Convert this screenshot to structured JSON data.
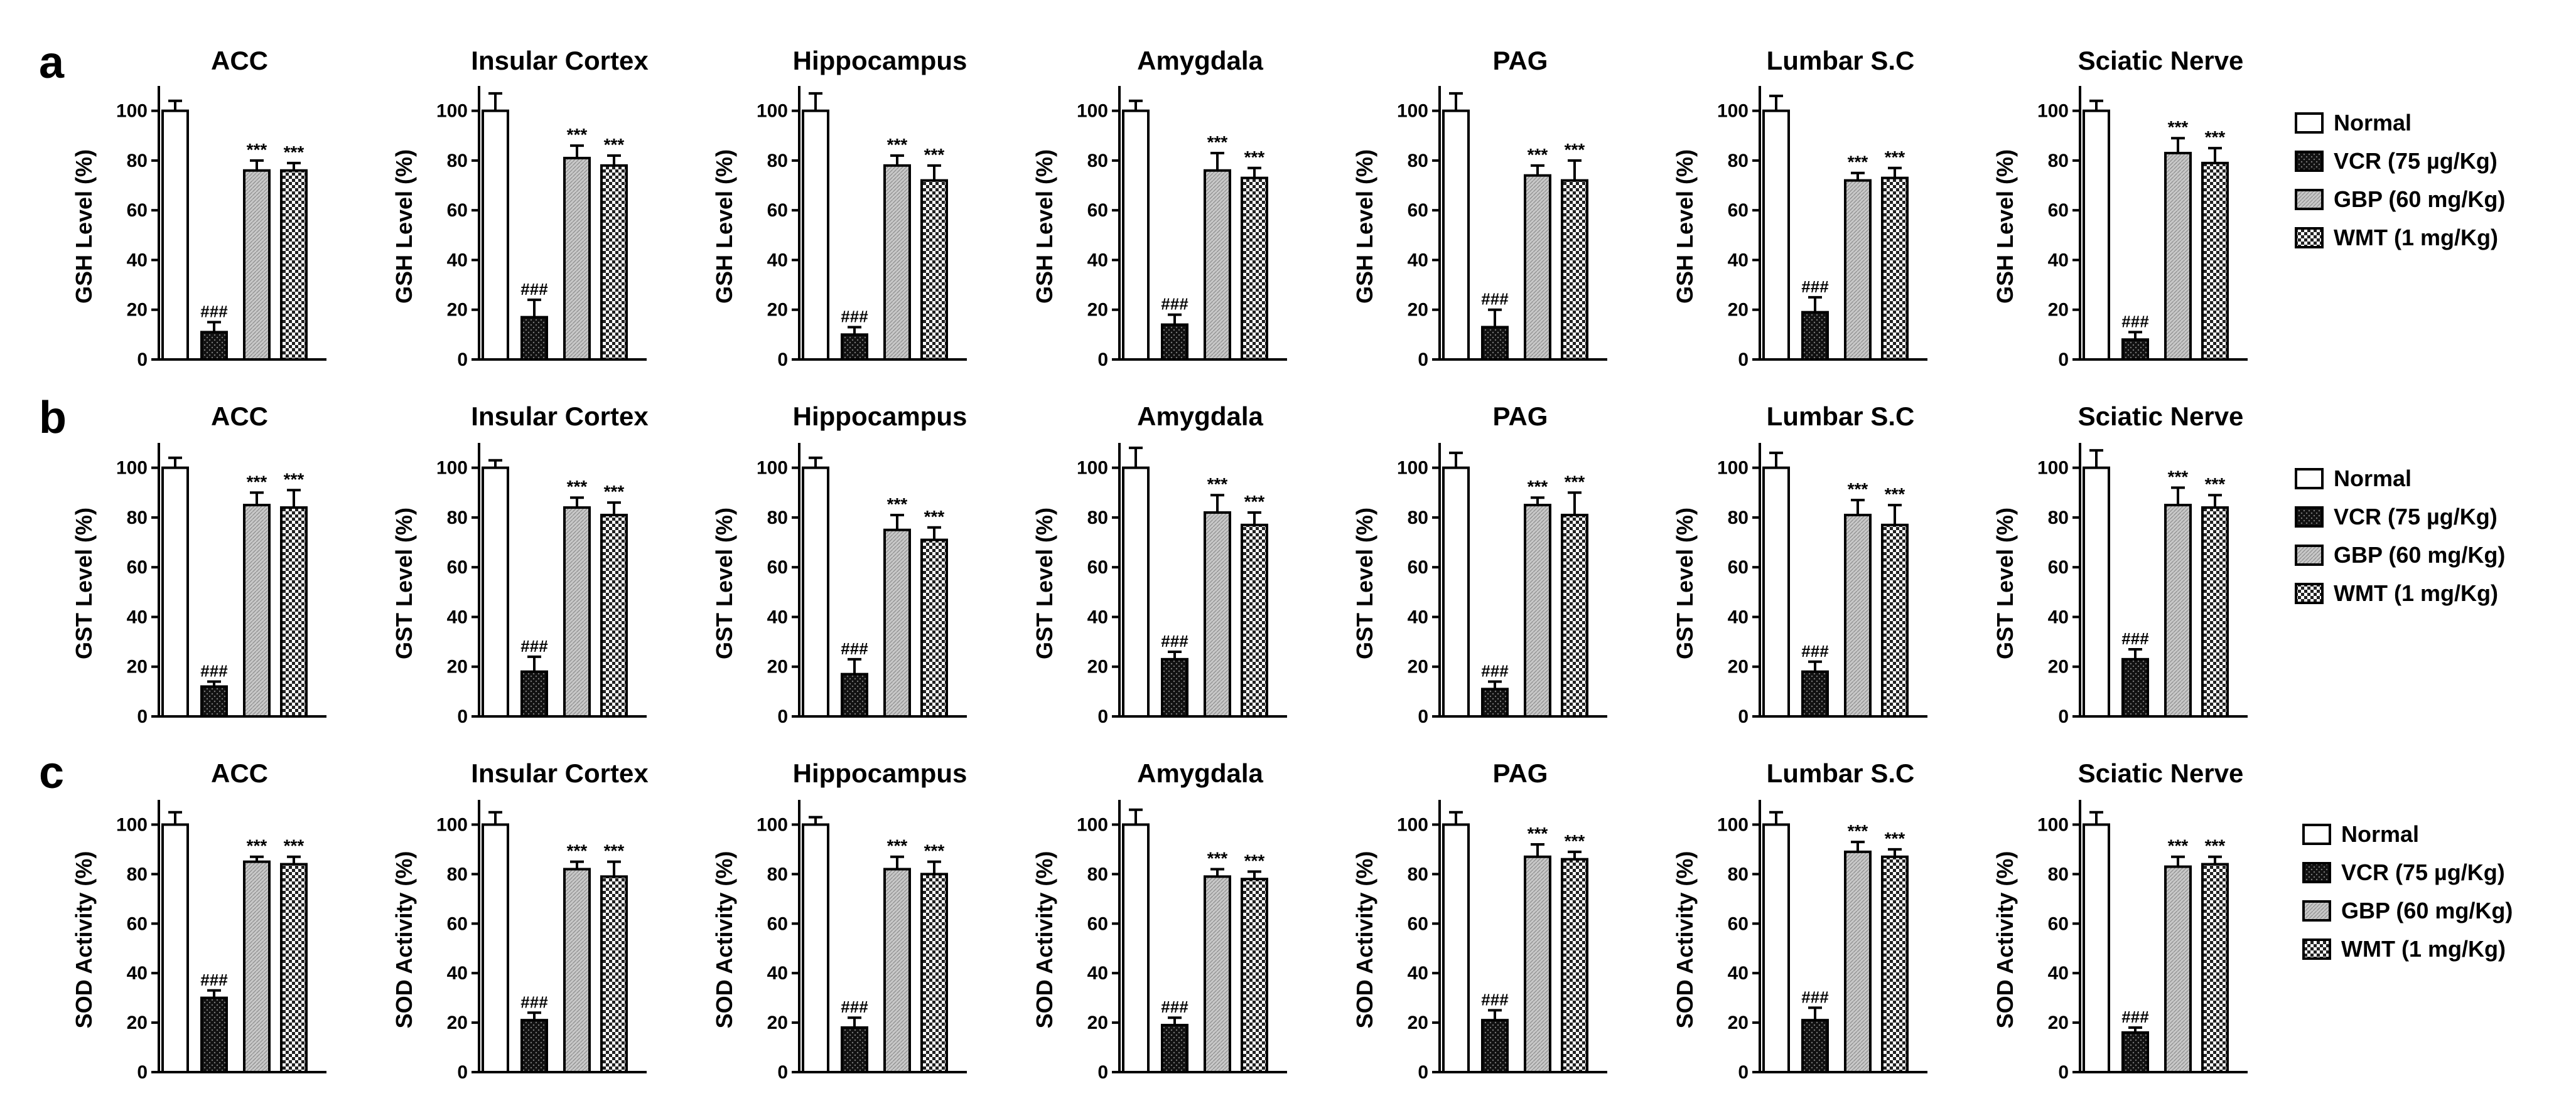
{
  "figure": {
    "panel_letters": [
      "a",
      "b",
      "c"
    ],
    "legend": [
      {
        "label": "Normal",
        "pattern": "white"
      },
      {
        "label": "VCR (75 µg/Kg)",
        "pattern": "dotted"
      },
      {
        "label": "GBP (60 mg/Kg)",
        "pattern": "grey"
      },
      {
        "label": "WMT (1 mg/Kg)",
        "pattern": "checker"
      }
    ],
    "colors": {
      "bar_outline": "#000000",
      "normal_fill": "#ffffff",
      "vcr_fill": "#1a1a1a",
      "gbp_fill": "#bdbdbd",
      "wmt_fill": "#8a8a8a"
    }
  },
  "chart_data": [
    {
      "type": "bar",
      "row": 0,
      "title": "ACC",
      "ylabel": "GSH Level (%)",
      "ylim": [
        0,
        110
      ],
      "yticks": [
        0,
        20,
        40,
        60,
        80,
        100
      ],
      "series": [
        {
          "name": "Normal",
          "value": 100,
          "sem": 4
        },
        {
          "name": "VCR (75 µg/Kg)",
          "value": 11,
          "sem": 4
        },
        {
          "name": "GBP (60 mg/Kg)",
          "value": 76,
          "sem": 4
        },
        {
          "name": "WMT (1 mg/Kg)",
          "value": 76,
          "sem": 3
        }
      ],
      "annotations": [
        "",
        "###",
        "***",
        "***"
      ]
    },
    {
      "type": "bar",
      "row": 0,
      "title": "Insular Cortex",
      "ylabel": "GSH Level (%)",
      "ylim": [
        0,
        110
      ],
      "yticks": [
        0,
        20,
        40,
        60,
        80,
        100
      ],
      "series": [
        {
          "name": "Normal",
          "value": 100,
          "sem": 7
        },
        {
          "name": "VCR (75 µg/Kg)",
          "value": 17,
          "sem": 7
        },
        {
          "name": "GBP (60 mg/Kg)",
          "value": 81,
          "sem": 5
        },
        {
          "name": "WMT (1 mg/Kg)",
          "value": 78,
          "sem": 4
        }
      ],
      "annotations": [
        "",
        "###",
        "***",
        "***"
      ]
    },
    {
      "type": "bar",
      "row": 0,
      "title": "Hippocampus",
      "ylabel": "GSH Level (%)",
      "ylim": [
        0,
        110
      ],
      "yticks": [
        0,
        20,
        40,
        60,
        80,
        100
      ],
      "series": [
        {
          "name": "Normal",
          "value": 100,
          "sem": 7
        },
        {
          "name": "VCR (75 µg/Kg)",
          "value": 10,
          "sem": 3
        },
        {
          "name": "GBP (60 mg/Kg)",
          "value": 78,
          "sem": 4
        },
        {
          "name": "WMT (1 mg/Kg)",
          "value": 72,
          "sem": 6
        }
      ],
      "annotations": [
        "",
        "###",
        "***",
        "***"
      ]
    },
    {
      "type": "bar",
      "row": 0,
      "title": "Amygdala",
      "ylabel": "GSH Level (%)",
      "ylim": [
        0,
        110
      ],
      "yticks": [
        0,
        20,
        40,
        60,
        80,
        100
      ],
      "series": [
        {
          "name": "Normal",
          "value": 100,
          "sem": 4
        },
        {
          "name": "VCR (75 µg/Kg)",
          "value": 14,
          "sem": 4
        },
        {
          "name": "GBP (60 mg/Kg)",
          "value": 76,
          "sem": 7
        },
        {
          "name": "WMT (1 mg/Kg)",
          "value": 73,
          "sem": 4
        }
      ],
      "annotations": [
        "",
        "###",
        "***",
        "***"
      ]
    },
    {
      "type": "bar",
      "row": 0,
      "title": "PAG",
      "ylabel": "GSH Level (%)",
      "ylim": [
        0,
        110
      ],
      "yticks": [
        0,
        20,
        40,
        60,
        80,
        100
      ],
      "series": [
        {
          "name": "Normal",
          "value": 100,
          "sem": 7
        },
        {
          "name": "VCR (75 µg/Kg)",
          "value": 13,
          "sem": 7
        },
        {
          "name": "GBP (60 mg/Kg)",
          "value": 74,
          "sem": 4
        },
        {
          "name": "WMT (1 mg/Kg)",
          "value": 72,
          "sem": 8
        }
      ],
      "annotations": [
        "",
        "###",
        "***",
        "***"
      ]
    },
    {
      "type": "bar",
      "row": 0,
      "title": "Lumbar S.C",
      "ylabel": "GSH Level (%)",
      "ylim": [
        0,
        110
      ],
      "yticks": [
        0,
        20,
        40,
        60,
        80,
        100
      ],
      "series": [
        {
          "name": "Normal",
          "value": 100,
          "sem": 6
        },
        {
          "name": "VCR (75 µg/Kg)",
          "value": 19,
          "sem": 6
        },
        {
          "name": "GBP (60 mg/Kg)",
          "value": 72,
          "sem": 3
        },
        {
          "name": "WMT (1 mg/Kg)",
          "value": 73,
          "sem": 4
        }
      ],
      "annotations": [
        "",
        "###",
        "***",
        "***"
      ]
    },
    {
      "type": "bar",
      "row": 0,
      "title": "Sciatic Nerve",
      "ylabel": "GSH Level (%)",
      "ylim": [
        0,
        110
      ],
      "yticks": [
        0,
        20,
        40,
        60,
        80,
        100
      ],
      "series": [
        {
          "name": "Normal",
          "value": 100,
          "sem": 4
        },
        {
          "name": "VCR (75 µg/Kg)",
          "value": 8,
          "sem": 3
        },
        {
          "name": "GBP (60 mg/Kg)",
          "value": 83,
          "sem": 6
        },
        {
          "name": "WMT (1 mg/Kg)",
          "value": 79,
          "sem": 6
        }
      ],
      "annotations": [
        "",
        "###",
        "***",
        "***"
      ]
    },
    {
      "type": "bar",
      "row": 1,
      "title": "ACC",
      "ylabel": "GST Level (%)",
      "ylim": [
        0,
        110
      ],
      "yticks": [
        0,
        20,
        40,
        60,
        80,
        100
      ],
      "series": [
        {
          "name": "Normal",
          "value": 100,
          "sem": 4
        },
        {
          "name": "VCR (75 µg/Kg)",
          "value": 12,
          "sem": 2
        },
        {
          "name": "GBP (60 mg/Kg)",
          "value": 85,
          "sem": 5
        },
        {
          "name": "WMT (1 mg/Kg)",
          "value": 84,
          "sem": 7
        }
      ],
      "annotations": [
        "",
        "###",
        "***",
        "***"
      ]
    },
    {
      "type": "bar",
      "row": 1,
      "title": "Insular Cortex",
      "ylabel": "GST Level (%)",
      "ylim": [
        0,
        110
      ],
      "yticks": [
        0,
        20,
        40,
        60,
        80,
        100
      ],
      "series": [
        {
          "name": "Normal",
          "value": 100,
          "sem": 3
        },
        {
          "name": "VCR (75 µg/Kg)",
          "value": 18,
          "sem": 6
        },
        {
          "name": "GBP (60 mg/Kg)",
          "value": 84,
          "sem": 4
        },
        {
          "name": "WMT (1 mg/Kg)",
          "value": 81,
          "sem": 5
        }
      ],
      "annotations": [
        "",
        "###",
        "***",
        "***"
      ]
    },
    {
      "type": "bar",
      "row": 1,
      "title": "Hippocampus",
      "ylabel": "GST Level (%)",
      "ylim": [
        0,
        110
      ],
      "yticks": [
        0,
        20,
        40,
        60,
        80,
        100
      ],
      "series": [
        {
          "name": "Normal",
          "value": 100,
          "sem": 4
        },
        {
          "name": "VCR (75 µg/Kg)",
          "value": 17,
          "sem": 6
        },
        {
          "name": "GBP (60 mg/Kg)",
          "value": 75,
          "sem": 6
        },
        {
          "name": "WMT (1 mg/Kg)",
          "value": 71,
          "sem": 5
        }
      ],
      "annotations": [
        "",
        "###",
        "***",
        "***"
      ]
    },
    {
      "type": "bar",
      "row": 1,
      "title": "Amygdala",
      "ylabel": "GST Level (%)",
      "ylim": [
        0,
        110
      ],
      "yticks": [
        0,
        20,
        40,
        60,
        80,
        100
      ],
      "series": [
        {
          "name": "Normal",
          "value": 100,
          "sem": 8
        },
        {
          "name": "VCR (75 µg/Kg)",
          "value": 23,
          "sem": 3
        },
        {
          "name": "GBP (60 mg/Kg)",
          "value": 82,
          "sem": 7
        },
        {
          "name": "WMT (1 mg/Kg)",
          "value": 77,
          "sem": 5
        }
      ],
      "annotations": [
        "",
        "###",
        "***",
        "***"
      ]
    },
    {
      "type": "bar",
      "row": 1,
      "title": "PAG",
      "ylabel": "GST Level (%)",
      "ylim": [
        0,
        110
      ],
      "yticks": [
        0,
        20,
        40,
        60,
        80,
        100
      ],
      "series": [
        {
          "name": "Normal",
          "value": 100,
          "sem": 6
        },
        {
          "name": "VCR (75 µg/Kg)",
          "value": 11,
          "sem": 3
        },
        {
          "name": "GBP (60 mg/Kg)",
          "value": 85,
          "sem": 3
        },
        {
          "name": "WMT (1 mg/Kg)",
          "value": 81,
          "sem": 9
        }
      ],
      "annotations": [
        "",
        "###",
        "***",
        "***"
      ]
    },
    {
      "type": "bar",
      "row": 1,
      "title": "Lumbar S.C",
      "ylabel": "GST Level (%)",
      "ylim": [
        0,
        110
      ],
      "yticks": [
        0,
        20,
        40,
        60,
        80,
        100
      ],
      "series": [
        {
          "name": "Normal",
          "value": 100,
          "sem": 6
        },
        {
          "name": "VCR (75 µg/Kg)",
          "value": 18,
          "sem": 4
        },
        {
          "name": "GBP (60 mg/Kg)",
          "value": 81,
          "sem": 6
        },
        {
          "name": "WMT (1 mg/Kg)",
          "value": 77,
          "sem": 8
        }
      ],
      "annotations": [
        "",
        "###",
        "***",
        "***"
      ]
    },
    {
      "type": "bar",
      "row": 1,
      "title": "Sciatic Nerve",
      "ylabel": "GST Level (%)",
      "ylim": [
        0,
        110
      ],
      "yticks": [
        0,
        20,
        40,
        60,
        80,
        100
      ],
      "series": [
        {
          "name": "Normal",
          "value": 100,
          "sem": 7
        },
        {
          "name": "VCR (75 µg/Kg)",
          "value": 23,
          "sem": 4
        },
        {
          "name": "GBP (60 mg/Kg)",
          "value": 85,
          "sem": 7
        },
        {
          "name": "WMT (1 mg/Kg)",
          "value": 84,
          "sem": 5
        }
      ],
      "annotations": [
        "",
        "###",
        "***",
        "***"
      ]
    },
    {
      "type": "bar",
      "row": 2,
      "title": "ACC",
      "ylabel": "SOD Activity (%)",
      "ylim": [
        0,
        110
      ],
      "yticks": [
        0,
        20,
        40,
        60,
        80,
        100
      ],
      "series": [
        {
          "name": "Normal",
          "value": 100,
          "sem": 5
        },
        {
          "name": "VCR (75 µg/Kg)",
          "value": 30,
          "sem": 3
        },
        {
          "name": "GBP (60 mg/Kg)",
          "value": 85,
          "sem": 2
        },
        {
          "name": "WMT (1 mg/Kg)",
          "value": 84,
          "sem": 3
        }
      ],
      "annotations": [
        "",
        "###",
        "***",
        "***"
      ]
    },
    {
      "type": "bar",
      "row": 2,
      "title": "Insular Cortex",
      "ylabel": "SOD Activity (%)",
      "ylim": [
        0,
        110
      ],
      "yticks": [
        0,
        20,
        40,
        60,
        80,
        100
      ],
      "series": [
        {
          "name": "Normal",
          "value": 100,
          "sem": 5
        },
        {
          "name": "VCR (75 µg/Kg)",
          "value": 21,
          "sem": 3
        },
        {
          "name": "GBP (60 mg/Kg)",
          "value": 82,
          "sem": 3
        },
        {
          "name": "WMT (1 mg/Kg)",
          "value": 79,
          "sem": 6
        }
      ],
      "annotations": [
        "",
        "###",
        "***",
        "***"
      ]
    },
    {
      "type": "bar",
      "row": 2,
      "title": "Hippocampus",
      "ylabel": "SOD Activity (%)",
      "ylim": [
        0,
        110
      ],
      "yticks": [
        0,
        20,
        40,
        60,
        80,
        100
      ],
      "series": [
        {
          "name": "Normal",
          "value": 100,
          "sem": 3
        },
        {
          "name": "VCR (75 µg/Kg)",
          "value": 18,
          "sem": 4
        },
        {
          "name": "GBP (60 mg/Kg)",
          "value": 82,
          "sem": 5
        },
        {
          "name": "WMT (1 mg/Kg)",
          "value": 80,
          "sem": 5
        }
      ],
      "annotations": [
        "",
        "###",
        "***",
        "***"
      ]
    },
    {
      "type": "bar",
      "row": 2,
      "title": "Amygdala",
      "ylabel": "SOD Activity (%)",
      "ylim": [
        0,
        110
      ],
      "yticks": [
        0,
        20,
        40,
        60,
        80,
        100
      ],
      "series": [
        {
          "name": "Normal",
          "value": 100,
          "sem": 6
        },
        {
          "name": "VCR (75 µg/Kg)",
          "value": 19,
          "sem": 3
        },
        {
          "name": "GBP (60 mg/Kg)",
          "value": 79,
          "sem": 3
        },
        {
          "name": "WMT (1 mg/Kg)",
          "value": 78,
          "sem": 3
        }
      ],
      "annotations": [
        "",
        "###",
        "***",
        "***"
      ]
    },
    {
      "type": "bar",
      "row": 2,
      "title": "PAG",
      "ylabel": "SOD Activity (%)",
      "ylim": [
        0,
        110
      ],
      "yticks": [
        0,
        20,
        40,
        60,
        80,
        100
      ],
      "series": [
        {
          "name": "Normal",
          "value": 100,
          "sem": 5
        },
        {
          "name": "VCR (75 µg/Kg)",
          "value": 21,
          "sem": 4
        },
        {
          "name": "GBP (60 mg/Kg)",
          "value": 87,
          "sem": 5
        },
        {
          "name": "WMT (1 mg/Kg)",
          "value": 86,
          "sem": 3
        }
      ],
      "annotations": [
        "",
        "###",
        "***",
        "***"
      ]
    },
    {
      "type": "bar",
      "row": 2,
      "title": "Lumbar S.C",
      "ylabel": "SOD Activity (%)",
      "ylim": [
        0,
        110
      ],
      "yticks": [
        0,
        20,
        40,
        60,
        80,
        100
      ],
      "series": [
        {
          "name": "Normal",
          "value": 100,
          "sem": 5
        },
        {
          "name": "VCR (75 µg/Kg)",
          "value": 21,
          "sem": 5
        },
        {
          "name": "GBP (60 mg/Kg)",
          "value": 89,
          "sem": 4
        },
        {
          "name": "WMT (1 mg/Kg)",
          "value": 87,
          "sem": 3
        }
      ],
      "annotations": [
        "",
        "###",
        "***",
        "***"
      ]
    },
    {
      "type": "bar",
      "row": 2,
      "title": "Sciatic Nerve",
      "ylabel": "SOD Activity (%)",
      "ylim": [
        0,
        110
      ],
      "yticks": [
        0,
        20,
        40,
        60,
        80,
        100
      ],
      "series": [
        {
          "name": "Normal",
          "value": 100,
          "sem": 5
        },
        {
          "name": "VCR (75 µg/Kg)",
          "value": 16,
          "sem": 2
        },
        {
          "name": "GBP (60 mg/Kg)",
          "value": 83,
          "sem": 4
        },
        {
          "name": "WMT (1 mg/Kg)",
          "value": 84,
          "sem": 3
        }
      ],
      "annotations": [
        "",
        "###",
        "***",
        "***"
      ]
    }
  ]
}
